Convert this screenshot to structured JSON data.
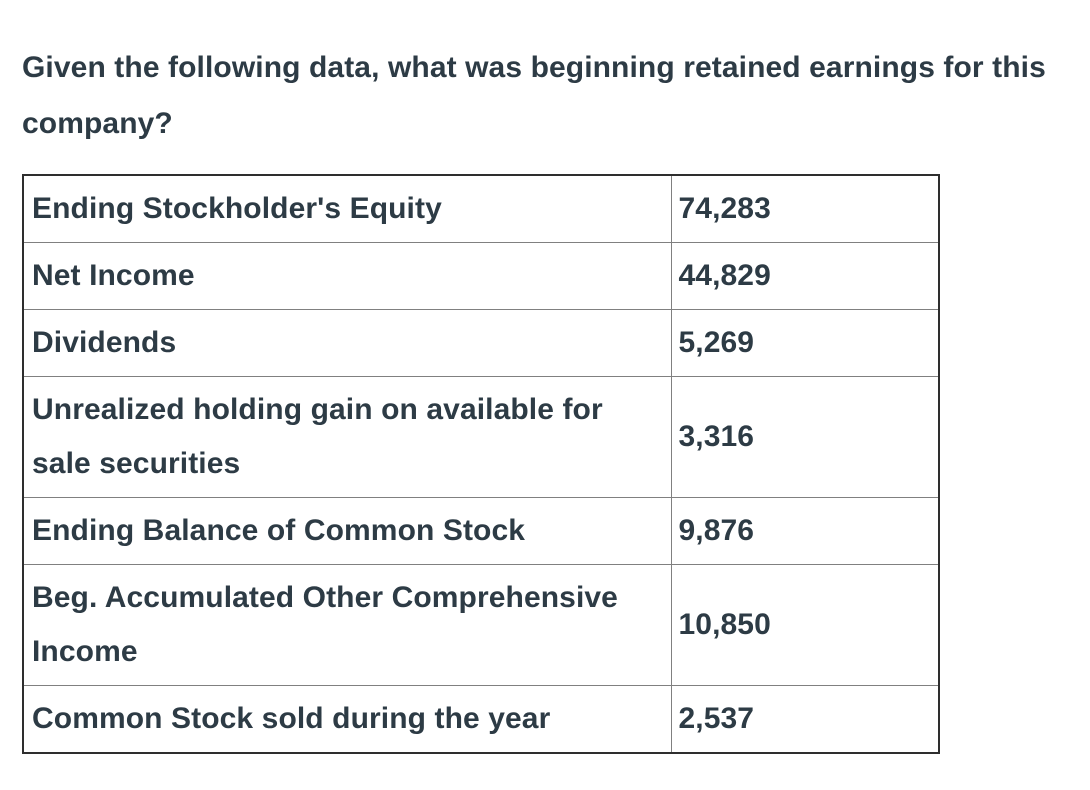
{
  "question": {
    "text": "Given the following data, what was beginning retained earnings for this company?"
  },
  "table": {
    "rows": [
      {
        "label": "Ending Stockholder's Equity",
        "value": "74,283"
      },
      {
        "label": "Net Income",
        "value": "44,829"
      },
      {
        "label": "Dividends",
        "value": "5,269"
      },
      {
        "label": "Unrealized holding gain on available for sale securities",
        "value": "3,316"
      },
      {
        "label": "Ending Balance of Common Stock",
        "value": "9,876"
      },
      {
        "label": "Beg. Accumulated Other Comprehensive Income",
        "value": "10,850"
      },
      {
        "label": "Common Stock sold during the year",
        "value": "2,537"
      }
    ]
  },
  "colors": {
    "text": "#2d3b45",
    "outer_border": "#2e2e2e",
    "inner_border": "#808080",
    "background": "#ffffff"
  }
}
